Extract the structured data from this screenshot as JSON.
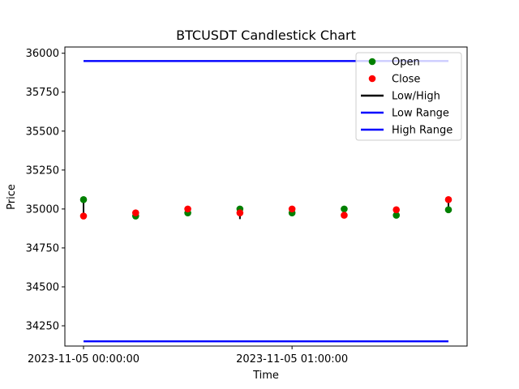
{
  "chart_data": {
    "type": "scatter",
    "title": "BTCUSDT Candlestick Chart",
    "xlabel": "Time",
    "ylabel": "Price",
    "x": [
      "2023-11-05 00:00:00",
      "2023-11-05 00:15:00",
      "2023-11-05 00:30:00",
      "2023-11-05 00:45:00",
      "2023-11-05 01:00:00",
      "2023-11-05 01:15:00",
      "2023-11-05 01:30:00",
      "2023-11-05 01:45:00"
    ],
    "x_ticks": [
      "2023-11-05 00:00:00",
      "2023-11-05 01:00:00"
    ],
    "ylim": [
      34120,
      36040
    ],
    "y_ticks": [
      34250,
      34500,
      34750,
      35000,
      35250,
      35500,
      35750,
      36000
    ],
    "series": [
      {
        "name": "Open",
        "marker": "circle",
        "color": "#008000",
        "values": [
          35060,
          34955,
          34975,
          35000,
          34975,
          35000,
          34960,
          34995
        ]
      },
      {
        "name": "Close",
        "marker": "circle",
        "color": "#ff0000",
        "values": [
          34955,
          34975,
          35000,
          34975,
          35000,
          34960,
          34995,
          35060
        ]
      },
      {
        "name": "Low/High",
        "type": "vline",
        "color": "#000000",
        "low": [
          34950,
          34950,
          34970,
          34935,
          34970,
          34955,
          34955,
          34990
        ],
        "high": [
          35065,
          34980,
          35005,
          35005,
          35010,
          35005,
          35000,
          35065
        ]
      },
      {
        "name": "Low Range",
        "type": "hline",
        "color": "#0000ff",
        "value": 34150
      },
      {
        "name": "High Range",
        "type": "hline",
        "color": "#0000ff",
        "value": 35950
      }
    ],
    "legend": {
      "placement": "top-right",
      "entries": [
        "Open",
        "Close",
        "Low/High",
        "Low Range",
        "High Range"
      ]
    },
    "grid": false
  }
}
